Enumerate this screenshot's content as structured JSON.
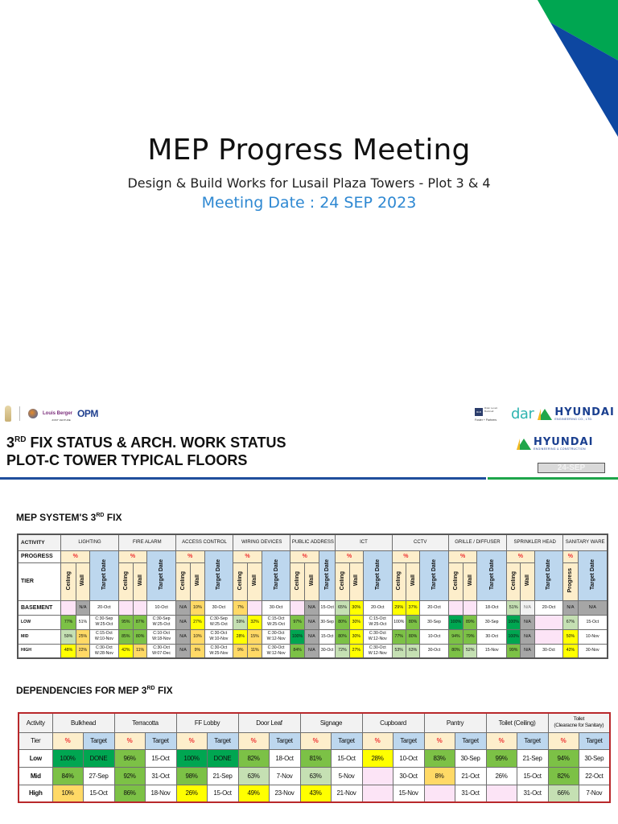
{
  "cover": {
    "title": "MEP Progress Meeting",
    "subtitle": "Design & Build Works for Lusail Plaza Towers - Plot 3 & 4",
    "meeting_date": "Meeting Date : 24 SEP 2023",
    "colors": {
      "accent_green": "#00a651",
      "accent_blue": "#0d47a1",
      "date_blue": "#2e88d2"
    }
  },
  "slide2": {
    "logos_left": {
      "lb": "Louis Berger",
      "jv": "JOINT VENTURE",
      "opm": "OPM"
    },
    "logos_right": {
      "rlb": "RLB",
      "rlb_text": "Rider Levett Bucknall",
      "fp": "Foster + Partners",
      "dar": "dar",
      "hyundai1": "HYUNDAI",
      "hyundai1_sub": "ENGINEERING CO., LTD.",
      "hyundai2": "HYUNDAI",
      "hyundai2_sub": "ENGINEERING & CONSTRUCTION"
    },
    "title_line1_pre": "3",
    "title_line1_sup": "RD",
    "title_line1_post": " FIX STATUS & ARCH. WORK STATUS",
    "title_line2": "PLOT-C TOWER TYPICAL FLOORS",
    "date_badge": "24-SEP"
  },
  "mep_fix": {
    "heading_pre": "MEP SYSTEM'S 3",
    "heading_sup": "RD",
    "heading_post": " FIX",
    "row_labels": {
      "activity": "ACTIVITY",
      "progress": "PROGRESS",
      "tier": "TIER"
    },
    "pct_symbol": "%",
    "sub_labels": {
      "ceiling": "Ceiling",
      "wall": "Wall",
      "target": "Target Date",
      "progress": "Progress"
    },
    "activities": [
      "LIGHTING",
      "FIRE ALARM",
      "ACCESS CONTROL",
      "WIRING DEVICES",
      "PUBLIC ADDRESS",
      "ICT",
      "CCTV",
      "GRILLE / DIFFUSER",
      "SPRINKLER HEAD",
      "SANITARY WARE"
    ],
    "tiers": [
      "BASEMENT",
      "LOW",
      "MID",
      "HIGH"
    ],
    "rows": [
      {
        "tier": "BASEMENT",
        "cells": [
          "",
          "N/A",
          "20-Oct",
          "",
          "",
          "10-Oct",
          "N/A",
          "10%",
          "30-Oct",
          "7%",
          "",
          "30-Oct",
          "",
          "N/A",
          "15-Oct",
          "65%",
          "30%",
          "20-Oct",
          "29%",
          "37%",
          "20-Oct",
          "",
          "",
          "18-Oct",
          "51%",
          "N/A",
          "20-Oct",
          "N/A",
          "N/A"
        ]
      },
      {
        "tier": "LOW",
        "cells": [
          "77%",
          "51%",
          "C:30-Sep|W:25-Oct",
          "95%",
          "87%",
          "C:30-Sep|W:25-Oct",
          "N/A",
          "27%",
          "C:30-Sep|W:25-Oct",
          "59%",
          "32%",
          "C:15-Oct|W:25-Oct",
          "97%",
          "N/A",
          "30-Sep",
          "80%",
          "30%",
          "C:15-Oct|W:25-Oct",
          "100%",
          "80%",
          "30-Sep",
          "100%",
          "89%",
          "30-Sep",
          "100%",
          "N/A",
          "",
          "67%",
          "15-Oct"
        ]
      },
      {
        "tier": "MID",
        "cells": [
          "59%",
          "25%",
          "C:15-Oct|W:10-Nov",
          "85%",
          "80%",
          "C:10-Oct|W:18-Nov",
          "N/A",
          "10%",
          "C:30-Oct|W:10-Nov",
          "28%",
          "15%",
          "C:30-Oct|W:12-Nov",
          "100%",
          "N/A",
          "15-Oct",
          "80%",
          "30%",
          "C:30-Oct|W:12-Nov",
          "77%",
          "80%",
          "10-Oct",
          "94%",
          "79%",
          "30-Oct",
          "100%",
          "N/A",
          "",
          "50%",
          "10-Nov"
        ]
      },
      {
        "tier": "HIGH",
        "cells": [
          "48%",
          "22%",
          "C:30-Oct|W:28-Nov",
          "42%",
          "11%",
          "C:30-Oct|W:07-Dec",
          "N/A",
          "9%",
          "C:30-Oct|W:25-Nov",
          "9%",
          "11%",
          "C:30-Oct|W:12-Nov",
          "84%",
          "N/A",
          "30-Oct",
          "72%",
          "27%",
          "C:30-Oct|W:12-Nov",
          "53%",
          "63%",
          "30-Oct",
          "80%",
          "52%",
          "15-Nov",
          "99%",
          "N/A",
          "30-Oct",
          "42%",
          "30-Nov"
        ]
      }
    ]
  },
  "dependencies": {
    "heading_pre": "DEPENDENCIES FOR MEP 3",
    "heading_sup": "RD",
    "heading_post": " FIX",
    "row_labels": {
      "activity": "Activity",
      "tier": "Tier"
    },
    "pct_symbol": "%",
    "target_label": "Target",
    "activities": [
      "Bulkhead",
      "Terracotta",
      "FF Lobby",
      "Door Leaf",
      "Signage",
      "Cupboard",
      "Pantry",
      "Toilet (Ceiling)",
      "Toilet (Clearacne for Sanitary)"
    ],
    "toilet_sanitary_line1": "Toilet",
    "toilet_sanitary_line2": "(Clearacne for Sanitary)",
    "rows": [
      {
        "tier": "Low",
        "cells": [
          "100%",
          "DONE",
          "96%",
          "15-Oct",
          "100%",
          "DONE",
          "82%",
          "18-Oct",
          "81%",
          "15-Oct",
          "28%",
          "10-Oct",
          "83%",
          "30-Sep",
          "99%",
          "21-Sep",
          "94%",
          "30-Sep"
        ]
      },
      {
        "tier": "Mid",
        "cells": [
          "84%",
          "27-Sep",
          "92%",
          "31-Oct",
          "98%",
          "21-Sep",
          "63%",
          "7-Nov",
          "63%",
          "5-Nov",
          "",
          "30-Oct",
          "8%",
          "21-Oct",
          "26%",
          "15-Oct",
          "82%",
          "22-Oct"
        ]
      },
      {
        "tier": "High",
        "cells": [
          "10%",
          "15-Oct",
          "86%",
          "18-Nov",
          "26%",
          "15-Oct",
          "49%",
          "23-Nov",
          "43%",
          "21-Nov",
          "",
          "15-Nov",
          "",
          "31-Oct",
          "",
          "31-Oct",
          "66%",
          "7-Nov"
        ]
      }
    ]
  }
}
